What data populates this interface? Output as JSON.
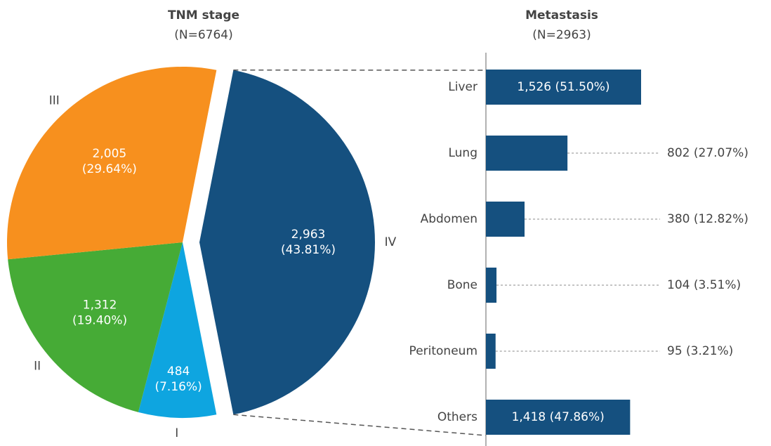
{
  "chart_data": [
    {
      "type": "pie",
      "title": "TNM stage",
      "subtitle": "(N=6764)",
      "categories": [
        "IV",
        "I",
        "II",
        "III"
      ],
      "values": [
        2963,
        484,
        1312,
        2005
      ],
      "value_labels": [
        "2,963 (43.81%)",
        "484 (7.16%)",
        "1,312 (19.40%)",
        "2,005 (29.64%)"
      ],
      "colors": [
        "#15507f",
        "#0ea5e0",
        "#46ab36",
        "#f7901e"
      ]
    },
    {
      "type": "hbar",
      "title": "Metastasis",
      "subtitle": "(N=2963)",
      "categories": [
        "Liver",
        "Lung",
        "Abdomen",
        "Bone",
        "Peritoneum",
        "Others"
      ],
      "values": [
        1526,
        802,
        380,
        104,
        95,
        1418
      ],
      "value_labels": [
        "1,526 (51.50%)",
        "802 (27.07%)",
        "380 (12.82%)",
        "104 (3.51%)",
        "95 (3.21%)",
        "1,418 (47.86%)"
      ],
      "color": "#15507f"
    }
  ]
}
